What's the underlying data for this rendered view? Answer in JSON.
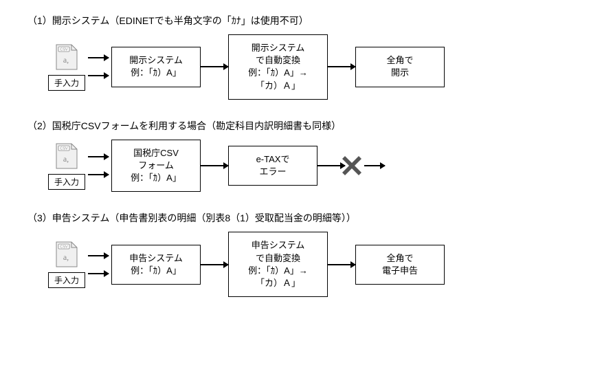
{
  "colors": {
    "stroke": "#000000",
    "background": "#ffffff",
    "csv_fill": "#f0f0f0",
    "csv_stroke": "#888888",
    "csv_text": "#888888",
    "x_fill": "#555555"
  },
  "icons": {
    "csv_label": "CSV",
    "csv_glyph": "a,"
  },
  "sections": [
    {
      "id": "s1",
      "title": "（1）開示システム（EDINETでも半角文字の「ｶﾅ」は使用不可）",
      "inputs": {
        "csv": true,
        "manual_label": "手入力"
      },
      "nodes": [
        {
          "id": "n1",
          "text": "開示システム\n例：「ｶ）A」"
        },
        {
          "id": "n2",
          "text": "開示システム\nで自動変換\n例：「ｶ）A」→\n「カ）Ａ」"
        },
        {
          "id": "n3",
          "text": "全角で\n開示"
        }
      ],
      "terminate_with_x": false
    },
    {
      "id": "s2",
      "title": "（2）国税庁CSVフォームを利用する場合（勘定科目内訳明細書も同様）",
      "inputs": {
        "csv": true,
        "manual_label": "手入力"
      },
      "nodes": [
        {
          "id": "n1",
          "text": "国税庁CSV\nフォーム\n例：「ｶ）A」"
        },
        {
          "id": "n2",
          "text": "e-TAXで\nエラー"
        }
      ],
      "terminate_with_x": true
    },
    {
      "id": "s3",
      "title": "（3）申告システム（申告書別表の明細（別表8（1）受取配当金の明細等））",
      "inputs": {
        "csv": true,
        "manual_label": "手入力"
      },
      "nodes": [
        {
          "id": "n1",
          "text": "申告システム\n例：「ｶ）A」"
        },
        {
          "id": "n2",
          "text": "申告システム\nで自動変換\n例：「ｶ）A」→\n「カ）Ａ」"
        },
        {
          "id": "n3",
          "text": "全角で\n電子申告"
        }
      ],
      "terminate_with_x": false
    }
  ]
}
